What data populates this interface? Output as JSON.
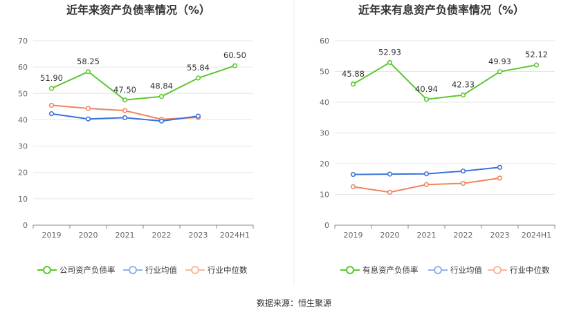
{
  "charts": [
    {
      "chart_data": {
        "type": "line",
        "title": "近年来资产负债率情况（%）",
        "categories": [
          "2019",
          "2020",
          "2021",
          "2022",
          "2023",
          "2024H1"
        ],
        "ylim": [
          0,
          70
        ],
        "yticks": [
          0,
          10,
          20,
          30,
          40,
          50,
          60,
          70
        ],
        "grid": true,
        "legend_position": "bottom",
        "series": [
          {
            "name": "公司资产负债率",
            "color": "#5bc72d",
            "values": [
              51.9,
              58.25,
              47.5,
              48.84,
              55.84,
              60.5
            ],
            "labels": [
              "51.90",
              "58.25",
              "47.50",
              "48.84",
              "55.84",
              "60.50"
            ]
          },
          {
            "name": "行业均值",
            "color": "#3a72db",
            "values": [
              42.3,
              40.3,
              40.8,
              39.5,
              41.4,
              null
            ]
          },
          {
            "name": "行业中位数",
            "color": "#f0845c",
            "values": [
              45.5,
              44.3,
              43.5,
              40.2,
              40.9,
              null
            ]
          }
        ]
      }
    },
    {
      "chart_data": {
        "type": "line",
        "title": "近年来有息资产负债率情况（%）",
        "categories": [
          "2019",
          "2020",
          "2021",
          "2022",
          "2023",
          "2024H1"
        ],
        "ylim": [
          0,
          60
        ],
        "yticks": [
          0,
          10,
          20,
          30,
          40,
          50,
          60
        ],
        "grid": true,
        "legend_position": "bottom",
        "series": [
          {
            "name": "有息资产负债率",
            "color": "#5bc72d",
            "values": [
              45.88,
              52.93,
              40.94,
              42.33,
              49.93,
              52.12
            ],
            "labels": [
              "45.88",
              "52.93",
              "40.94",
              "42.33",
              "49.93",
              "52.12"
            ]
          },
          {
            "name": "行业均值",
            "color": "#3a72db",
            "values": [
              16.5,
              16.6,
              16.7,
              17.6,
              18.8,
              null
            ]
          },
          {
            "name": "行业中位数",
            "color": "#f0845c",
            "values": [
              12.5,
              10.7,
              13.2,
              13.6,
              15.3,
              null
            ]
          }
        ]
      }
    }
  ],
  "footer": {
    "source": "数据来源：恒生聚源"
  }
}
